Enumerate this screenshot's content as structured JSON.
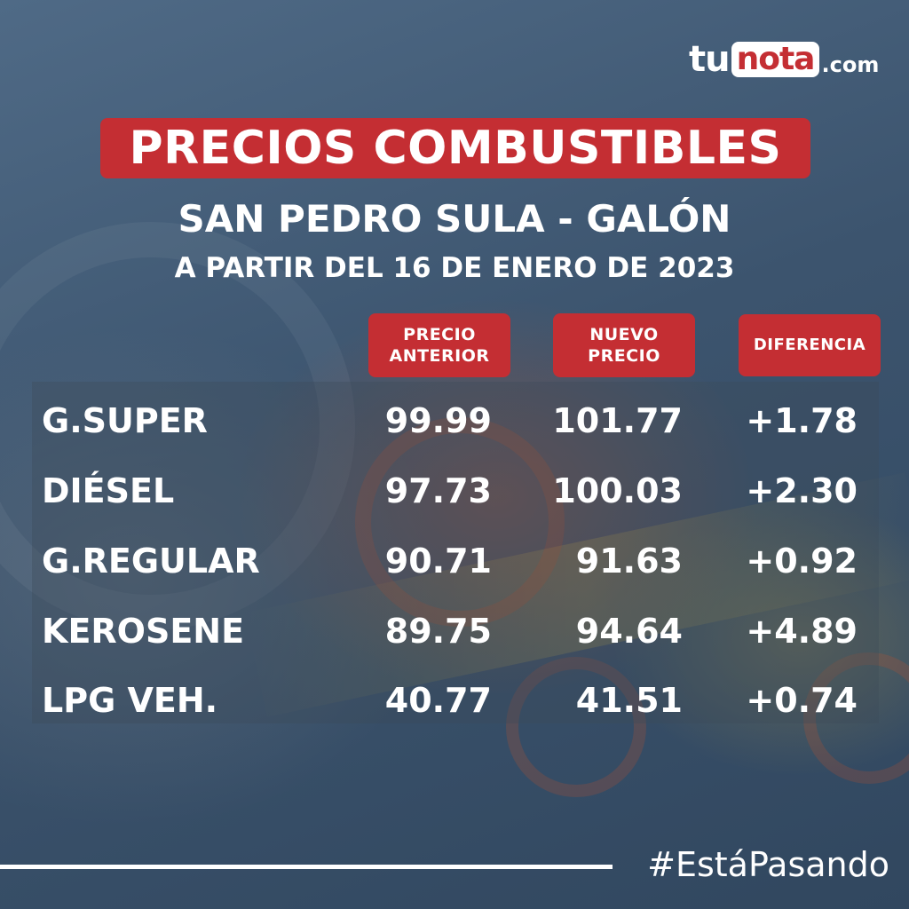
{
  "brand": {
    "part1": "tu",
    "part2": "nota",
    "part3": ".com"
  },
  "title": "PRECIOS COMBUSTIBLES",
  "subtitle": "SAN PEDRO SULA - GALÓN",
  "date": "A PARTIR DEL 16 DE ENERO DE 2023",
  "headers": {
    "previous_line1": "PRECIO",
    "previous_line2": "ANTERIOR",
    "new_line1": "NUEVO",
    "new_line2": "PRECIO",
    "difference": "DIFERENCIA"
  },
  "rows": [
    {
      "fuel": "G.SUPER",
      "previous": "99.99",
      "new": "101.77",
      "difference": "+1.78"
    },
    {
      "fuel": "DIÉSEL",
      "previous": "97.73",
      "new": "100.03",
      "difference": "+2.30"
    },
    {
      "fuel": "G.REGULAR",
      "previous": "90.71",
      "new": "91.63",
      "difference": "+0.92"
    },
    {
      "fuel": "KEROSENE",
      "previous": "89.75",
      "new": "94.64",
      "difference": "+4.89"
    },
    {
      "fuel": "LPG VEH.",
      "previous": "40.77",
      "new": "41.51",
      "difference": "+0.74"
    }
  ],
  "hashtag": "#EstáPasando",
  "colors": {
    "accent": "#c42e33",
    "background": "#3f5670",
    "text": "#ffffff"
  }
}
